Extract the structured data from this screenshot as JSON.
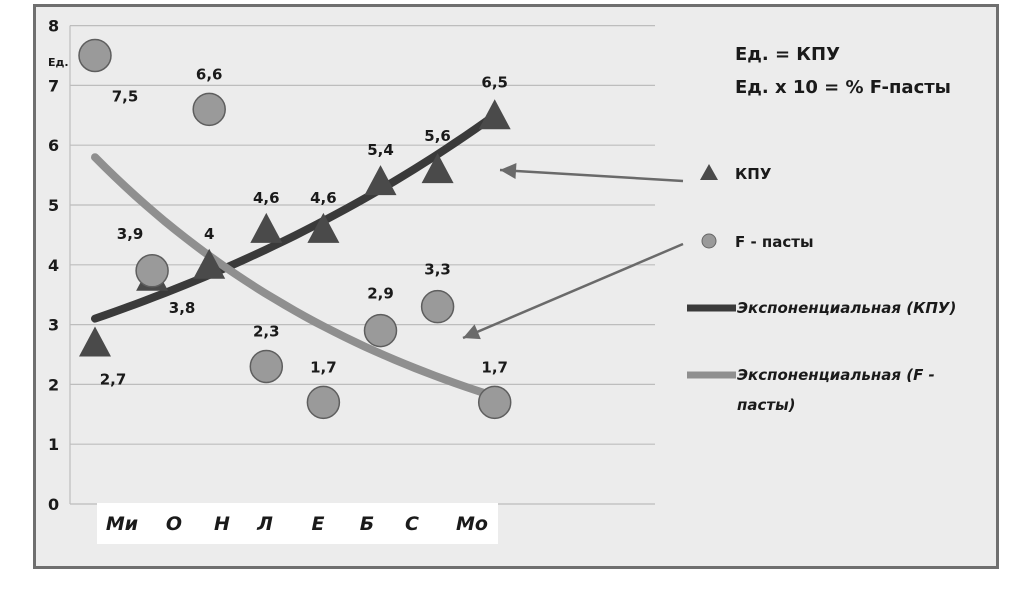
{
  "chart_data": {
    "type": "scatter",
    "categories": [
      "Ми",
      "О",
      "Н",
      "Л",
      "Е",
      "Б",
      "С",
      "Мо"
    ],
    "ylim": [
      0,
      8
    ],
    "yticks": [
      "0",
      "1",
      "2",
      "3",
      "4",
      "5",
      "6",
      "7",
      "8"
    ],
    "ylabel": "Ед.",
    "grid": true,
    "series": [
      {
        "name": "КПУ",
        "marker": "triangle",
        "color": "#4a4a4a",
        "values": [
          2.7,
          3.8,
          4,
          4.6,
          4.6,
          5.4,
          5.6,
          6.5
        ],
        "labels": [
          "2,7",
          "3,8",
          "4",
          "4,6",
          "4,6",
          "5,4",
          "5,6",
          "6,5"
        ]
      },
      {
        "name": "F - пасты",
        "marker": "circle",
        "color": "#9a9a9a",
        "values": [
          7.5,
          3.9,
          6.6,
          2.3,
          1.7,
          2.9,
          3.3,
          1.7
        ],
        "labels": [
          "7,5",
          "3,9",
          "6,6",
          "2,3",
          "1,7",
          "2,9",
          "3,3",
          "1,7"
        ]
      }
    ],
    "trendlines": [
      {
        "name": "Экспоненциальная (КПУ)",
        "type": "exponential",
        "color": "#3a3a3a",
        "start": 3.1,
        "end": 6.5
      },
      {
        "name": "Экспоненциальная (F - пасты)",
        "type": "exponential",
        "color": "#8f8f8f",
        "start": 5.8,
        "end": 1.8
      }
    ],
    "notes": [
      "Ед. = КПУ",
      "Ед. х 10 = % F-пасты"
    ],
    "legend": {
      "position": "right",
      "items": [
        "КПУ",
        "F - пасты",
        "Экспоненциальная (КПУ)",
        "Экспоненциальная (F -",
        "пасты)"
      ]
    }
  }
}
